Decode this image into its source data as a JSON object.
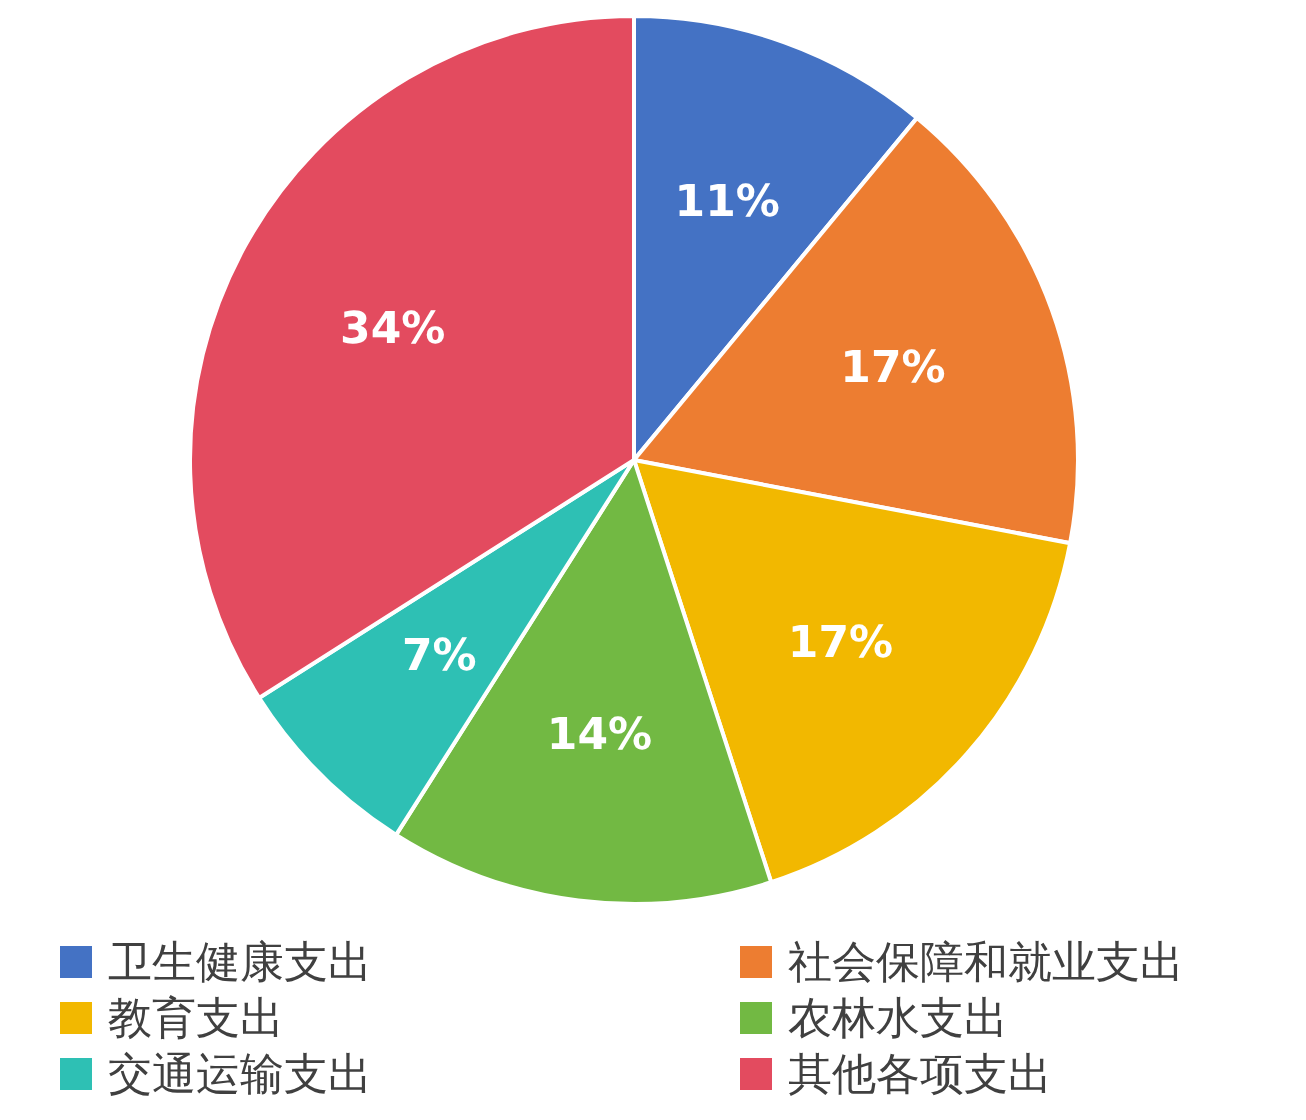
{
  "chart_data": {
    "type": "pie",
    "categories": [
      "卫生健康支出",
      "社会保障和就业支出",
      "教育支出",
      "农林水支出",
      "交通运输支出",
      "其他各项支出"
    ],
    "values": [
      11,
      17,
      17,
      14,
      7,
      34
    ],
    "colors": [
      "#4472c4",
      "#ed7d31",
      "#f2b800",
      "#72b943",
      "#2ec0b4",
      "#e34b5f"
    ],
    "value_labels": [
      "11%",
      "17%",
      "17%",
      "14%",
      "7%",
      "34%"
    ],
    "legend": "bottom"
  }
}
